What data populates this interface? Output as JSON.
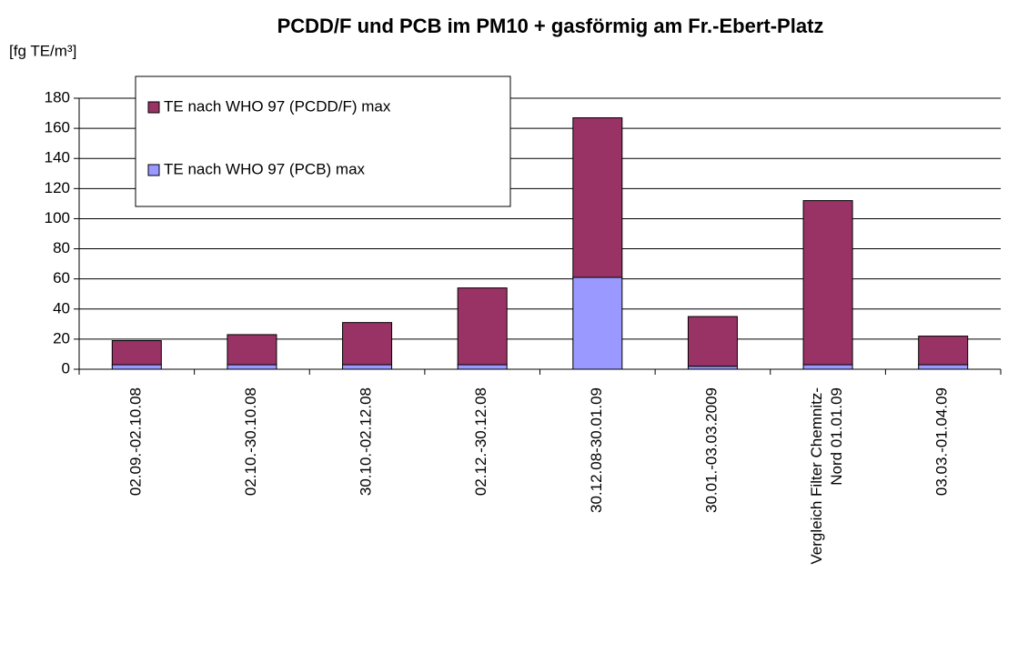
{
  "chart_data": {
    "type": "stacked_bar",
    "title": "PCDD/F und PCB im PM10 + gasförmig am Fr.-Ebert-Platz",
    "y_label": "[fg TE/m³]",
    "categories": [
      "02.09.-02.10.08",
      "02.10.-30.10.08",
      "30.10.-02.12.08",
      "02.12.-30.12.08",
      "30.12.08-30.01.09",
      "30.01.-03.03.2009",
      "Vergleich Filter Chemnitz-\nNord 01.01.09",
      "03.03.-01.04.09"
    ],
    "series": [
      {
        "name": "TE nach WHO 97 (PCB) max",
        "color": "#9999ff",
        "values": [
          3,
          3,
          3,
          3,
          61,
          2,
          3,
          3
        ]
      },
      {
        "name": "TE nach WHO 97 (PCDD/F) max",
        "color": "#993366",
        "values": [
          16,
          20,
          28,
          51,
          106,
          33,
          109,
          19
        ]
      }
    ],
    "ylim": [
      0,
      180
    ],
    "yticks": [
      0,
      20,
      40,
      60,
      80,
      100,
      120,
      140,
      160,
      180
    ],
    "grid": true
  }
}
